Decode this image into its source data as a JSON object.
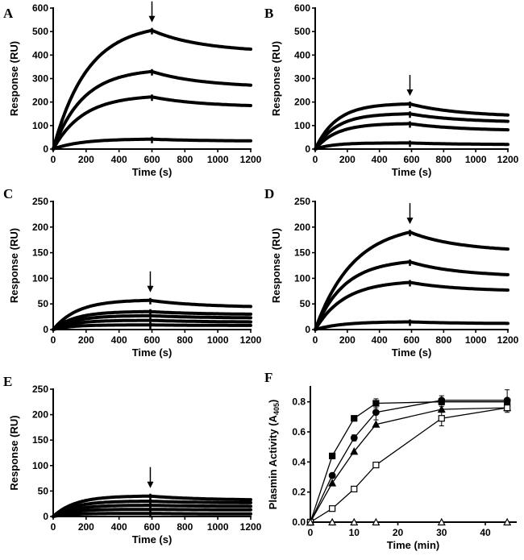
{
  "chart_data": [
    {
      "panel": "A",
      "type": "line",
      "xlabel": "Time (s)",
      "ylabel": "Response (RU)",
      "xlim": [
        0,
        1200
      ],
      "ylim": [
        0,
        600
      ],
      "xticks": [
        0,
        200,
        400,
        600,
        800,
        1000,
        1200
      ],
      "yticks": [
        0,
        100,
        200,
        300,
        400,
        500,
        600
      ],
      "arrow_at": 600,
      "series": [
        {
          "name": "curve-1",
          "plateau": 505,
          "end": 425,
          "k": 0.0048
        },
        {
          "name": "curve-2",
          "plateau": 330,
          "end": 272,
          "k": 0.0055
        },
        {
          "name": "curve-3",
          "plateau": 222,
          "end": 185,
          "k": 0.0055
        },
        {
          "name": "curve-4",
          "plateau": 42,
          "end": 35,
          "k": 0.006
        }
      ]
    },
    {
      "panel": "B",
      "type": "line",
      "xlabel": "Time (s)",
      "ylabel": "Response (RU)",
      "xlim": [
        0,
        1200
      ],
      "ylim": [
        0,
        600
      ],
      "xticks": [
        0,
        200,
        400,
        600,
        800,
        1000,
        1200
      ],
      "yticks": [
        0,
        100,
        200,
        300,
        400,
        500,
        600
      ],
      "arrow_at": 590,
      "series": [
        {
          "name": "curve-1",
          "plateau": 192,
          "end": 145,
          "k": 0.0075
        },
        {
          "name": "curve-2",
          "plateau": 150,
          "end": 118,
          "k": 0.0075
        },
        {
          "name": "curve-3",
          "plateau": 108,
          "end": 82,
          "k": 0.0075
        },
        {
          "name": "curve-4",
          "plateau": 26,
          "end": 20,
          "k": 0.009
        }
      ]
    },
    {
      "panel": "C",
      "type": "line",
      "xlabel": "Time (s)",
      "ylabel": "Response (RU)",
      "xlim": [
        0,
        1200
      ],
      "ylim": [
        0,
        250
      ],
      "xticks": [
        0,
        200,
        400,
        600,
        800,
        1000,
        1200
      ],
      "yticks": [
        0,
        50,
        100,
        150,
        200,
        250
      ],
      "arrow_at": 590,
      "series": [
        {
          "name": "curve-1",
          "plateau": 57,
          "end": 45,
          "k": 0.0068
        },
        {
          "name": "curve-2",
          "plateau": 35,
          "end": 30,
          "k": 0.0075
        },
        {
          "name": "curve-3",
          "plateau": 27,
          "end": 23,
          "k": 0.0075
        },
        {
          "name": "curve-4",
          "plateau": 18,
          "end": 15,
          "k": 0.008
        },
        {
          "name": "curve-5",
          "plateau": 9,
          "end": 8,
          "k": 0.009
        }
      ]
    },
    {
      "panel": "D",
      "type": "line",
      "xlabel": "Time (s)",
      "ylabel": "Response (RU)",
      "xlim": [
        0,
        1200
      ],
      "ylim": [
        0,
        250
      ],
      "xticks": [
        0,
        200,
        400,
        600,
        800,
        1000,
        1200
      ],
      "yticks": [
        0,
        50,
        100,
        150,
        200,
        250
      ],
      "arrow_at": 590,
      "series": [
        {
          "name": "curve-1",
          "plateau": 190,
          "end": 157,
          "k": 0.0042
        },
        {
          "name": "curve-2",
          "plateau": 132,
          "end": 107,
          "k": 0.0055
        },
        {
          "name": "curve-3",
          "plateau": 92,
          "end": 77,
          "k": 0.0055
        },
        {
          "name": "curve-4",
          "plateau": 15,
          "end": 12,
          "k": 0.006
        }
      ]
    },
    {
      "panel": "E",
      "type": "line",
      "xlabel": "Time (s)",
      "ylabel": "Response (RU)",
      "xlim": [
        0,
        1200
      ],
      "ylim": [
        0,
        250
      ],
      "xticks": [
        0,
        200,
        400,
        600,
        800,
        1000,
        1200
      ],
      "yticks": [
        0,
        50,
        100,
        150,
        200,
        250
      ],
      "arrow_at": 590,
      "series": [
        {
          "name": "curve-1",
          "plateau": 40,
          "end": 33,
          "k": 0.0075
        },
        {
          "name": "curve-2",
          "plateau": 30,
          "end": 27,
          "k": 0.008
        },
        {
          "name": "curve-3",
          "plateau": 22,
          "end": 20,
          "k": 0.008
        },
        {
          "name": "curve-4",
          "plateau": 14,
          "end": 13,
          "k": 0.009
        },
        {
          "name": "curve-5",
          "plateau": 6,
          "end": 5,
          "k": 0.01
        }
      ]
    },
    {
      "panel": "F",
      "type": "line",
      "xlabel": "Time (min)",
      "ylabel": "Plasmin Activity (A405)",
      "ylabel_main": "Plasmin Activity (A",
      "ylabel_sub": "405",
      "ylabel_close": ")",
      "xlim": [
        0,
        47
      ],
      "ylim": [
        0,
        0.9
      ],
      "xticks": [
        0,
        10,
        20,
        30,
        40
      ],
      "yticks": [
        0.0,
        0.2,
        0.4,
        0.6,
        0.8
      ],
      "ytick_labels": [
        "0.0",
        "0.2",
        "0.4",
        "0.6",
        "0.8"
      ],
      "series": [
        {
          "name": "filled-square",
          "marker": "square-filled",
          "x": [
            0,
            5,
            10,
            15,
            30,
            45
          ],
          "y": [
            0,
            0.44,
            0.69,
            0.79,
            0.8,
            0.8
          ],
          "err": [
            0,
            0,
            0,
            0.03,
            0.02,
            0.02
          ]
        },
        {
          "name": "filled-circle",
          "marker": "circle-filled",
          "x": [
            0,
            5,
            10,
            15,
            30,
            45
          ],
          "y": [
            0,
            0.31,
            0.56,
            0.73,
            0.81,
            0.81
          ],
          "err": [
            0,
            0,
            0.02,
            0.05,
            0.03,
            0.07
          ]
        },
        {
          "name": "filled-triangle",
          "marker": "triangle-filled",
          "x": [
            0,
            5,
            10,
            15,
            30,
            45
          ],
          "y": [
            0,
            0.26,
            0.47,
            0.65,
            0.75,
            0.76
          ],
          "err": [
            0,
            0,
            0,
            0,
            0.02,
            0.03
          ]
        },
        {
          "name": "open-square",
          "marker": "square-open",
          "x": [
            0,
            5,
            10,
            15,
            30,
            45
          ],
          "y": [
            0,
            0.09,
            0.22,
            0.38,
            0.69,
            0.76
          ],
          "err": [
            0,
            0,
            0,
            0,
            0.05,
            0.02
          ]
        },
        {
          "name": "open-triangle",
          "marker": "triangle-open",
          "x": [
            0,
            5,
            10,
            15,
            30,
            45
          ],
          "y": [
            0,
            0,
            0,
            0,
            0,
            0
          ],
          "err": [
            0,
            0,
            0,
            0,
            0,
            0
          ]
        }
      ]
    }
  ]
}
